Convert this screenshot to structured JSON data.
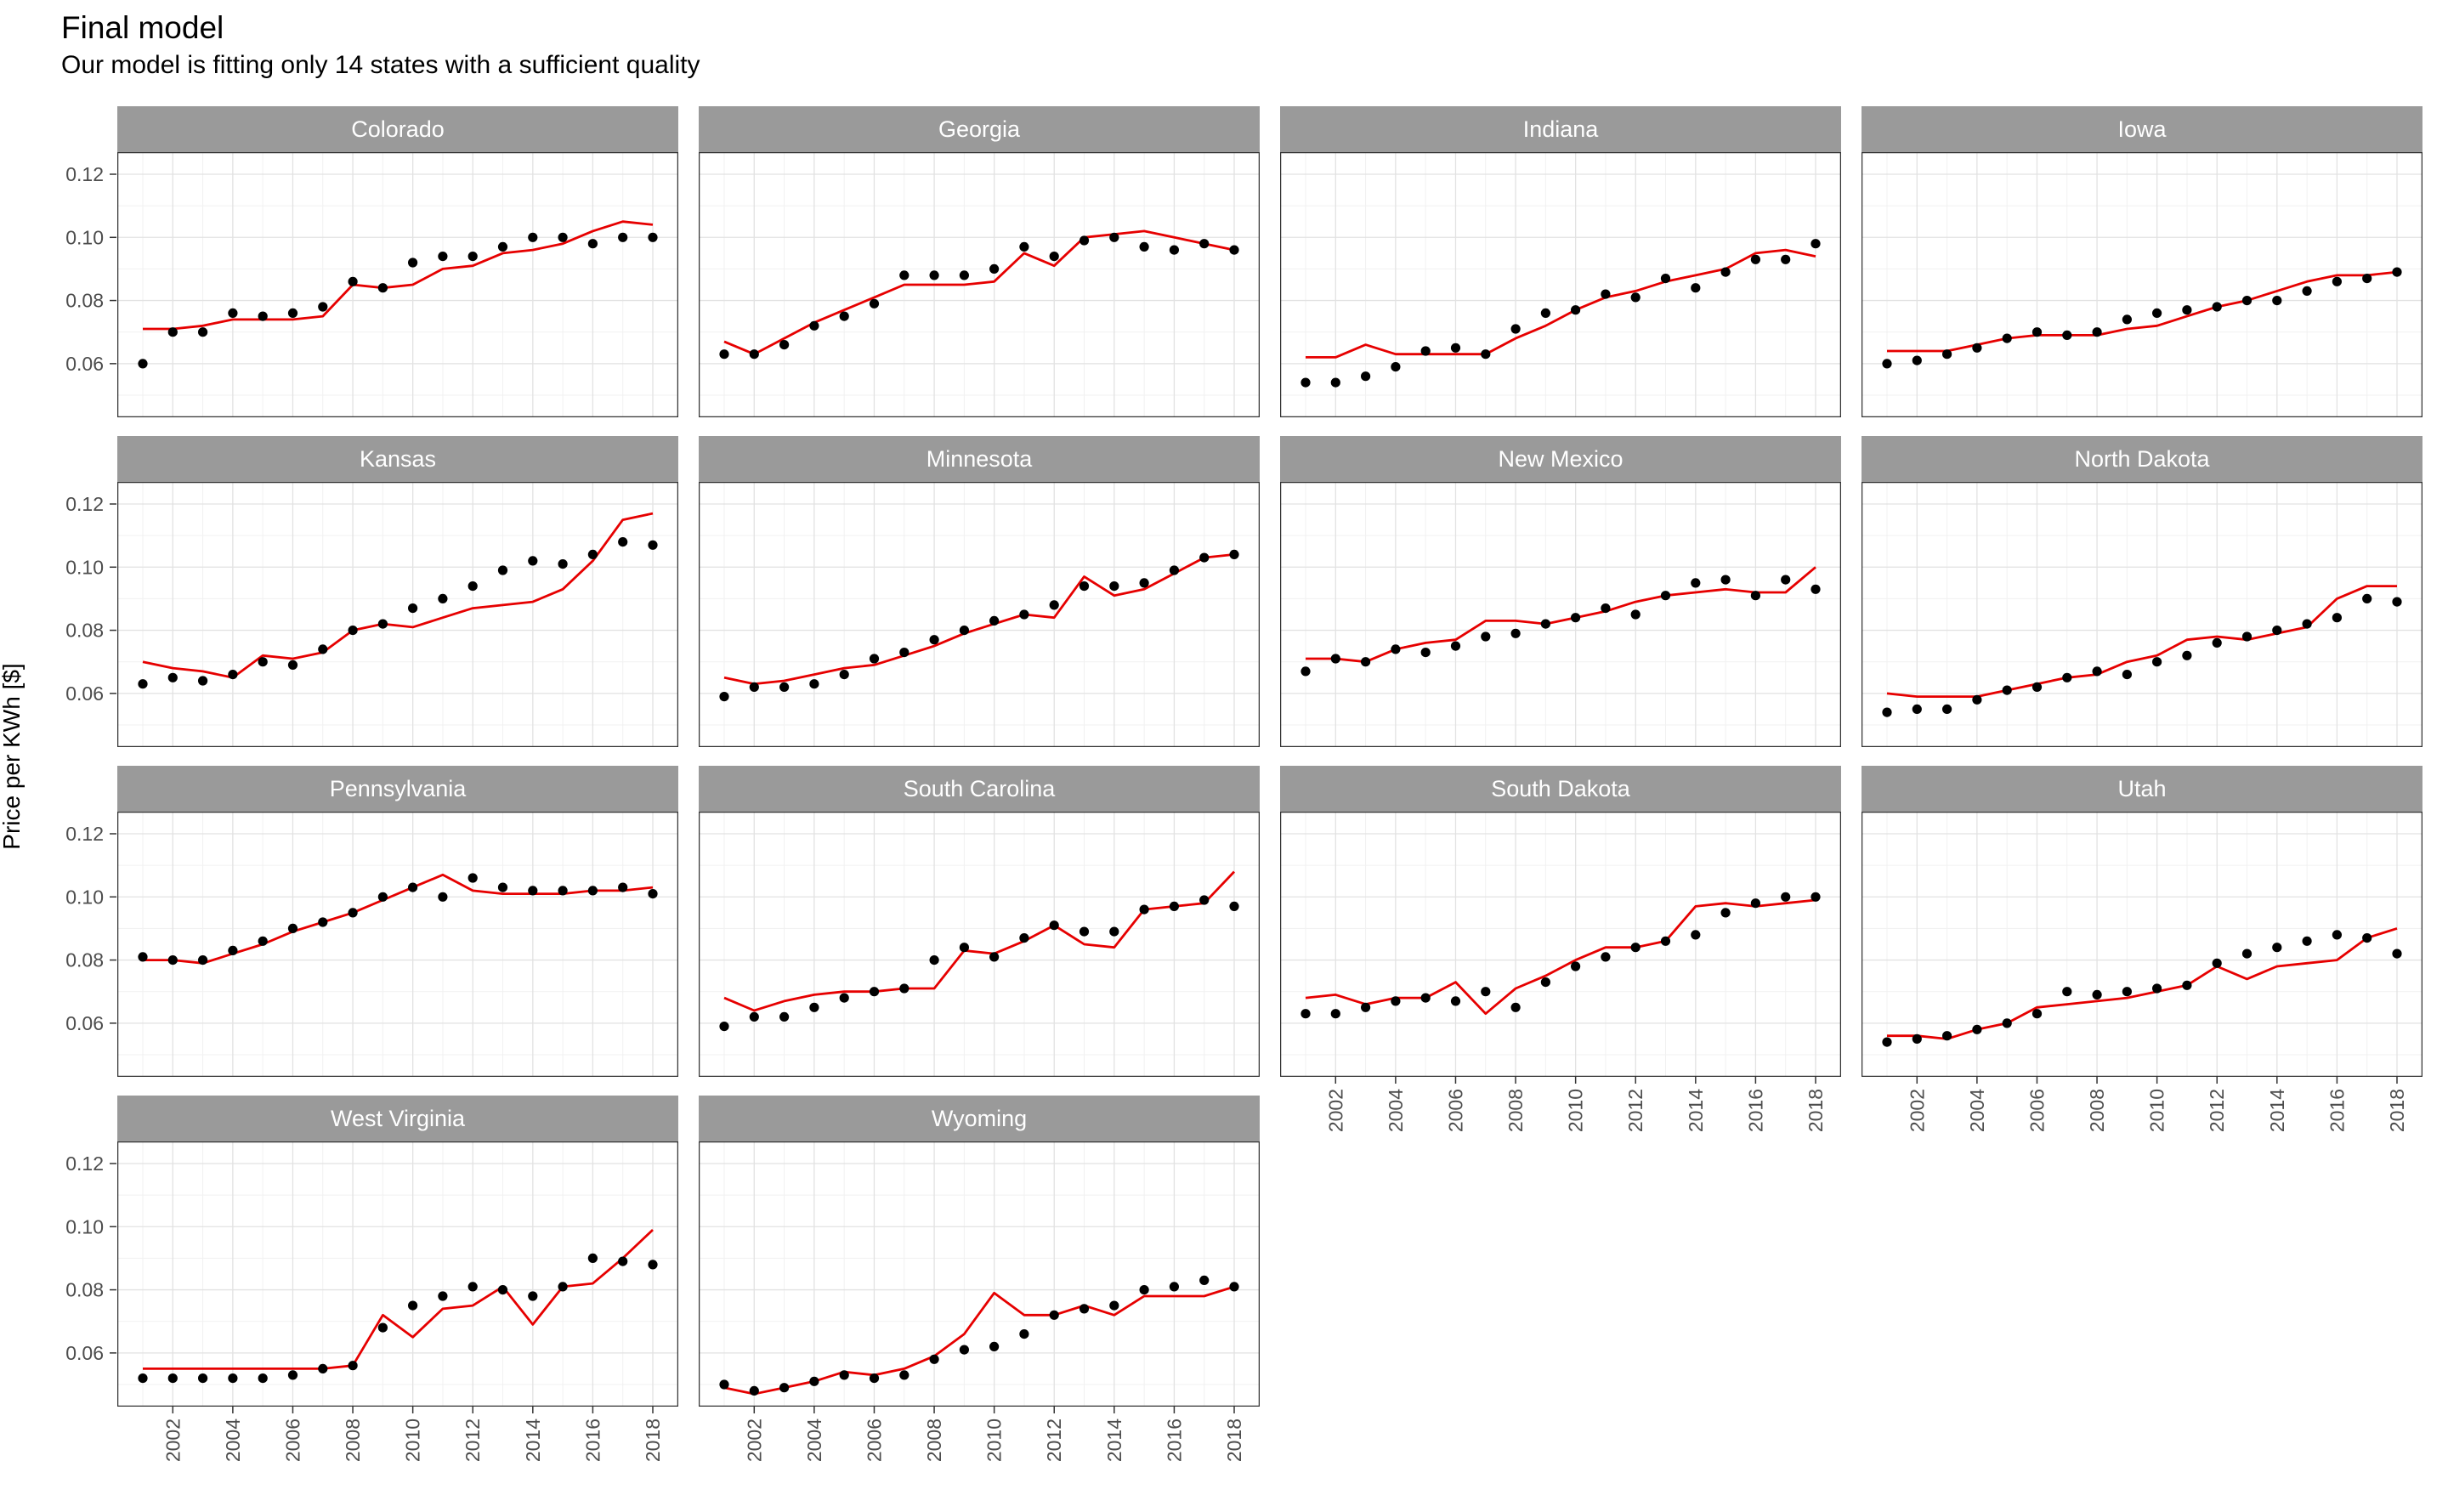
{
  "header": {
    "title": "Final model",
    "subtitle": "Our model is fitting only 14 states with a sufficient quality"
  },
  "chart_data": {
    "type": "line",
    "layout": "facet-wrap-4-columns",
    "title": "Final model",
    "subtitle": "Our model is fitting only 14 states with a sufficient quality",
    "xlabel": "",
    "ylabel": "Price per KWh [$]",
    "legend_position": "none",
    "grid": "on",
    "x": [
      2001,
      2002,
      2003,
      2004,
      2005,
      2006,
      2007,
      2008,
      2009,
      2010,
      2011,
      2012,
      2013,
      2014,
      2015,
      2016,
      2017,
      2018
    ],
    "x_ticks": [
      2002,
      2004,
      2006,
      2008,
      2010,
      2012,
      2014,
      2016,
      2018
    ],
    "x_minor_ticks": [
      2001,
      2003,
      2005,
      2007,
      2009,
      2011,
      2013,
      2015,
      2017
    ],
    "y_ticks": [
      0.06,
      0.08,
      0.1,
      0.12
    ],
    "y_tick_labels": [
      "0.06",
      "0.08",
      "0.10",
      "0.12"
    ],
    "y_minor_ticks": [
      0.05,
      0.07,
      0.09,
      0.11
    ],
    "xlim": [
      2000.15,
      2018.85
    ],
    "ylim": [
      0.043,
      0.127
    ],
    "series_roles": {
      "observed": "black points",
      "fitted": "red model line"
    },
    "colors": {
      "points": "#000000",
      "line": "#e60000",
      "strip_bg": "#9a9a9a",
      "strip_text": "#ffffff",
      "grid_major": "#e2e2e2",
      "grid_minor": "#f1f1f1",
      "panel_border": "#333333",
      "tick_text": "#4d4d4d"
    },
    "facets": [
      {
        "name": "Colorado",
        "observed": [
          0.06,
          0.07,
          0.07,
          0.076,
          0.075,
          0.076,
          0.078,
          0.086,
          0.084,
          0.092,
          0.094,
          0.094,
          0.097,
          0.1,
          0.1,
          0.098,
          0.1,
          0.1
        ],
        "fitted": [
          0.071,
          0.071,
          0.072,
          0.074,
          0.074,
          0.074,
          0.075,
          0.085,
          0.084,
          0.085,
          0.09,
          0.091,
          0.095,
          0.096,
          0.098,
          0.102,
          0.105,
          0.104
        ]
      },
      {
        "name": "Georgia",
        "observed": [
          0.063,
          0.063,
          0.066,
          0.072,
          0.075,
          0.079,
          0.088,
          0.088,
          0.088,
          0.09,
          0.097,
          0.094,
          0.099,
          0.1,
          0.097,
          0.096,
          0.098,
          0.096
        ],
        "fitted": [
          0.067,
          0.063,
          0.068,
          0.073,
          0.077,
          0.081,
          0.085,
          0.085,
          0.085,
          0.086,
          0.095,
          0.091,
          0.1,
          0.101,
          0.102,
          0.1,
          0.098,
          0.096
        ]
      },
      {
        "name": "Indiana",
        "observed": [
          0.054,
          0.054,
          0.056,
          0.059,
          0.064,
          0.065,
          0.063,
          0.071,
          0.076,
          0.077,
          0.082,
          0.081,
          0.087,
          0.084,
          0.089,
          0.093,
          0.093,
          0.098
        ],
        "fitted": [
          0.062,
          0.062,
          0.066,
          0.063,
          0.063,
          0.063,
          0.063,
          0.068,
          0.072,
          0.077,
          0.081,
          0.083,
          0.086,
          0.088,
          0.09,
          0.095,
          0.096,
          0.094
        ]
      },
      {
        "name": "Iowa",
        "observed": [
          0.06,
          0.061,
          0.063,
          0.065,
          0.068,
          0.07,
          0.069,
          0.07,
          0.074,
          0.076,
          0.077,
          0.078,
          0.08,
          0.08,
          0.083,
          0.086,
          0.087,
          0.089
        ],
        "fitted": [
          0.064,
          0.064,
          0.064,
          0.066,
          0.068,
          0.069,
          0.069,
          0.069,
          0.071,
          0.072,
          0.075,
          0.078,
          0.08,
          0.083,
          0.086,
          0.088,
          0.088,
          0.089
        ]
      },
      {
        "name": "Kansas",
        "observed": [
          0.063,
          0.065,
          0.064,
          0.066,
          0.07,
          0.069,
          0.074,
          0.08,
          0.082,
          0.087,
          0.09,
          0.094,
          0.099,
          0.102,
          0.101,
          0.104,
          0.108,
          0.107
        ],
        "fitted": [
          0.07,
          0.068,
          0.067,
          0.065,
          0.072,
          0.071,
          0.073,
          0.08,
          0.082,
          0.081,
          0.084,
          0.087,
          0.088,
          0.089,
          0.093,
          0.102,
          0.115,
          0.117
        ]
      },
      {
        "name": "Minnesota",
        "observed": [
          0.059,
          0.062,
          0.062,
          0.063,
          0.066,
          0.071,
          0.073,
          0.077,
          0.08,
          0.083,
          0.085,
          0.088,
          0.094,
          0.094,
          0.095,
          0.099,
          0.103,
          0.104
        ],
        "fitted": [
          0.065,
          0.063,
          0.064,
          0.066,
          0.068,
          0.069,
          0.072,
          0.075,
          0.079,
          0.082,
          0.085,
          0.084,
          0.097,
          0.091,
          0.093,
          0.098,
          0.103,
          0.104
        ]
      },
      {
        "name": "New Mexico",
        "observed": [
          0.067,
          0.071,
          0.07,
          0.074,
          0.073,
          0.075,
          0.078,
          0.079,
          0.082,
          0.084,
          0.087,
          0.085,
          0.091,
          0.095,
          0.096,
          0.091,
          0.096,
          0.093
        ],
        "fitted": [
          0.071,
          0.071,
          0.07,
          0.074,
          0.076,
          0.077,
          0.083,
          0.083,
          0.082,
          0.084,
          0.086,
          0.089,
          0.091,
          0.092,
          0.093,
          0.092,
          0.092,
          0.1
        ]
      },
      {
        "name": "North Dakota",
        "observed": [
          0.054,
          0.055,
          0.055,
          0.058,
          0.061,
          0.062,
          0.065,
          0.067,
          0.066,
          0.07,
          0.072,
          0.076,
          0.078,
          0.08,
          0.082,
          0.084,
          0.09,
          0.089
        ],
        "fitted": [
          0.06,
          0.059,
          0.059,
          0.059,
          0.061,
          0.063,
          0.065,
          0.066,
          0.07,
          0.072,
          0.077,
          0.078,
          0.077,
          0.079,
          0.081,
          0.09,
          0.094,
          0.094
        ]
      },
      {
        "name": "Pennsylvania",
        "observed": [
          0.081,
          0.08,
          0.08,
          0.083,
          0.086,
          0.09,
          0.092,
          0.095,
          0.1,
          0.103,
          0.1,
          0.106,
          0.103,
          0.102,
          0.102,
          0.102,
          0.103,
          0.101
        ],
        "fitted": [
          0.08,
          0.08,
          0.079,
          0.082,
          0.085,
          0.089,
          0.092,
          0.095,
          0.099,
          0.103,
          0.107,
          0.102,
          0.101,
          0.101,
          0.101,
          0.102,
          0.102,
          0.103
        ]
      },
      {
        "name": "South Carolina",
        "observed": [
          0.059,
          0.062,
          0.062,
          0.065,
          0.068,
          0.07,
          0.071,
          0.08,
          0.084,
          0.081,
          0.087,
          0.091,
          0.089,
          0.089,
          0.096,
          0.097,
          0.099,
          0.097
        ],
        "fitted": [
          0.068,
          0.064,
          0.067,
          0.069,
          0.07,
          0.07,
          0.071,
          0.071,
          0.083,
          0.082,
          0.086,
          0.091,
          0.085,
          0.084,
          0.096,
          0.097,
          0.098,
          0.108
        ]
      },
      {
        "name": "South Dakota",
        "observed": [
          0.063,
          0.063,
          0.065,
          0.067,
          0.068,
          0.067,
          0.07,
          0.065,
          0.073,
          0.078,
          0.081,
          0.084,
          0.086,
          0.088,
          0.095,
          0.098,
          0.1,
          0.1
        ],
        "fitted": [
          0.068,
          0.069,
          0.066,
          0.068,
          0.068,
          0.073,
          0.063,
          0.071,
          0.075,
          0.08,
          0.084,
          0.084,
          0.086,
          0.097,
          0.098,
          0.097,
          0.098,
          0.099
        ]
      },
      {
        "name": "Utah",
        "observed": [
          0.054,
          0.055,
          0.056,
          0.058,
          0.06,
          0.063,
          0.07,
          0.069,
          0.07,
          0.071,
          0.072,
          0.079,
          0.082,
          0.084,
          0.086,
          0.088,
          0.087,
          0.082
        ],
        "fitted": [
          0.056,
          0.056,
          0.055,
          0.058,
          0.06,
          0.065,
          0.066,
          0.067,
          0.068,
          0.07,
          0.072,
          0.078,
          0.074,
          0.078,
          0.079,
          0.08,
          0.087,
          0.09
        ]
      },
      {
        "name": "West Virginia",
        "observed": [
          0.052,
          0.052,
          0.052,
          0.052,
          0.052,
          0.053,
          0.055,
          0.056,
          0.068,
          0.075,
          0.078,
          0.081,
          0.08,
          0.078,
          0.081,
          0.09,
          0.089,
          0.088
        ],
        "fitted": [
          0.055,
          0.055,
          0.055,
          0.055,
          0.055,
          0.055,
          0.055,
          0.056,
          0.072,
          0.065,
          0.074,
          0.075,
          0.081,
          0.069,
          0.081,
          0.082,
          0.09,
          0.099
        ]
      },
      {
        "name": "Wyoming",
        "observed": [
          0.05,
          0.048,
          0.049,
          0.051,
          0.053,
          0.052,
          0.053,
          0.058,
          0.061,
          0.062,
          0.066,
          0.072,
          0.074,
          0.075,
          0.08,
          0.081,
          0.083,
          0.081
        ],
        "fitted": [
          0.049,
          0.047,
          0.049,
          0.051,
          0.054,
          0.053,
          0.055,
          0.059,
          0.066,
          0.079,
          0.072,
          0.072,
          0.075,
          0.072,
          0.078,
          0.078,
          0.078,
          0.081
        ]
      }
    ]
  }
}
